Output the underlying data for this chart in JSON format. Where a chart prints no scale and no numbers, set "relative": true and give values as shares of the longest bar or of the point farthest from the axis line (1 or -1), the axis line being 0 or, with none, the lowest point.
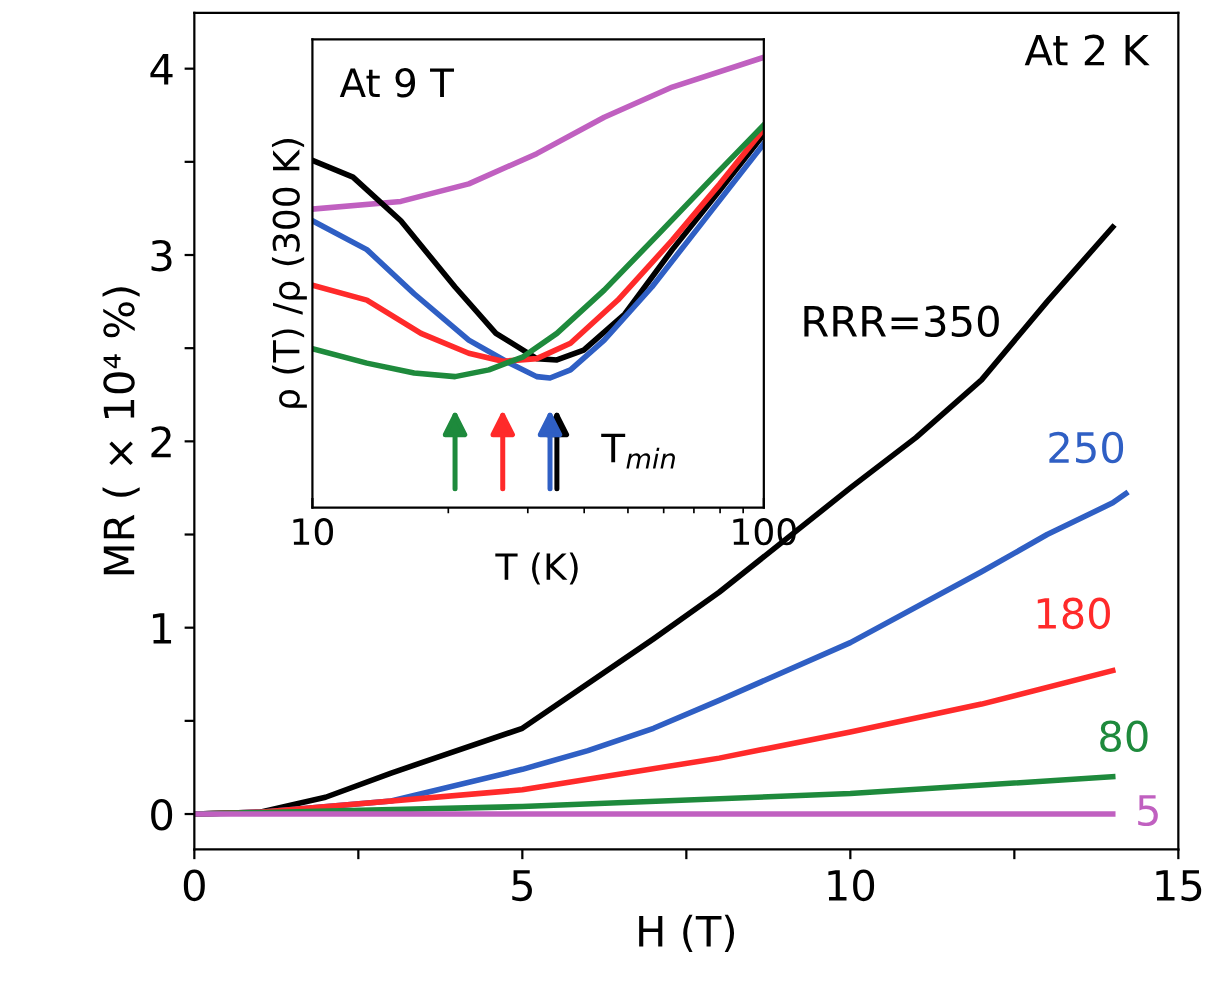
{
  "chart_data": [
    {
      "type": "line",
      "xlabel": "H (T)",
      "ylabel": "MR ( × 10⁴ %)",
      "annotations": [
        "At 2 K"
      ],
      "xlim": [
        0,
        15
      ],
      "xticks": [
        0,
        {
          "value": 2.5,
          "label": null
        },
        5,
        {
          "value": 7.5,
          "label": null
        },
        10,
        {
          "value": 12.5,
          "label": null
        },
        15
      ],
      "ylim": [
        -0.19,
        4.3
      ],
      "yticks": [
        0,
        {
          "value": 0.5,
          "label": null
        },
        1,
        {
          "value": 1.5,
          "label": null
        },
        2,
        {
          "value": 2.5,
          "label": null
        },
        3,
        {
          "value": 3.5,
          "label": null
        },
        4
      ],
      "grid": false,
      "legend": false,
      "marker": "none",
      "line_style": "solid",
      "series": [
        {
          "name": "RRR=350",
          "color": "#000000",
          "x": [
            0,
            1,
            2,
            3,
            5,
            7,
            8,
            10,
            11,
            12,
            13,
            14
          ],
          "values": [
            0,
            0.01,
            0.09,
            0.22,
            0.46,
            0.94,
            1.19,
            1.75,
            2.02,
            2.33,
            2.75,
            3.15
          ]
        },
        {
          "name": "250",
          "color": "#2f5fc4",
          "x": [
            0,
            1,
            3,
            5,
            6,
            7,
            8,
            10,
            12,
            13,
            14,
            14.2
          ],
          "values": [
            0,
            0.01,
            0.07,
            0.24,
            0.34,
            0.46,
            0.61,
            0.92,
            1.3,
            1.5,
            1.67,
            1.72
          ]
        },
        {
          "name": "180",
          "color": "#ff2a2a",
          "x": [
            0,
            1,
            5,
            8,
            10,
            12,
            14
          ],
          "values": [
            0,
            0.01,
            0.13,
            0.3,
            0.44,
            0.59,
            0.77
          ]
        },
        {
          "name": "80",
          "color": "#1e8a3c",
          "x": [
            0,
            5,
            10,
            14
          ],
          "values": [
            0,
            0.04,
            0.11,
            0.2
          ]
        },
        {
          "name": "5",
          "color": "#c060c0",
          "x": [
            0,
            14
          ],
          "values": [
            0,
            0
          ]
        }
      ]
    },
    {
      "type": "line",
      "xlabel": "T (K)",
      "ylabel": "ρ (T) /ρ (300 K)",
      "relative": true,
      "log": "x",
      "tick_labels": "x",
      "annotations": [
        "At 9 T",
        "T$_{min}$"
      ],
      "xlim": [
        10,
        100
      ],
      "xticks": [
        10,
        100
      ],
      "grid": false,
      "legend": false,
      "marker": "none",
      "line_style": "solid",
      "series": [
        {
          "color": "#c060c0",
          "x": [
            10,
            15.7,
            22.2,
            31.4,
            44.3,
            62.7,
            100
          ],
          "values": [
            0.663,
            0.68,
            0.719,
            0.786,
            0.867,
            0.934,
            1.0
          ]
        },
        {
          "color": "#000000",
          "x": [
            10,
            12.3,
            15.7,
            20.7,
            25.5,
            31.4,
            34.8,
            39.9,
            49.2,
            62.7,
            79.9,
            100
          ],
          "values": [
            0.771,
            0.734,
            0.637,
            0.49,
            0.387,
            0.331,
            0.328,
            0.35,
            0.43,
            0.573,
            0.705,
            0.829
          ]
        },
        {
          "color": "#2f5fc4",
          "x": [
            10,
            13.2,
            16.8,
            22.2,
            27.3,
            31.4,
            33.6,
            37.3,
            44.3,
            56.5,
            74.5,
            100
          ],
          "values": [
            0.637,
            0.573,
            0.475,
            0.372,
            0.321,
            0.291,
            0.288,
            0.306,
            0.372,
            0.49,
            0.644,
            0.808
          ]
        },
        {
          "color": "#ff2a2a",
          "x": [
            10,
            13.2,
            17.4,
            22.2,
            26.4,
            31.4,
            37.3,
            47.5,
            62.7,
            79.9,
            100
          ],
          "values": [
            0.494,
            0.461,
            0.387,
            0.343,
            0.325,
            0.331,
            0.365,
            0.461,
            0.594,
            0.719,
            0.841
          ]
        },
        {
          "color": "#1e8a3c",
          "x": [
            10,
            13.2,
            16.8,
            20.7,
            24.6,
            29.3,
            34.8,
            44.3,
            58.5,
            77.2,
            100
          ],
          "values": [
            0.353,
            0.321,
            0.299,
            0.291,
            0.306,
            0.335,
            0.387,
            0.483,
            0.608,
            0.734,
            0.85
          ]
        }
      ]
    }
  ]
}
